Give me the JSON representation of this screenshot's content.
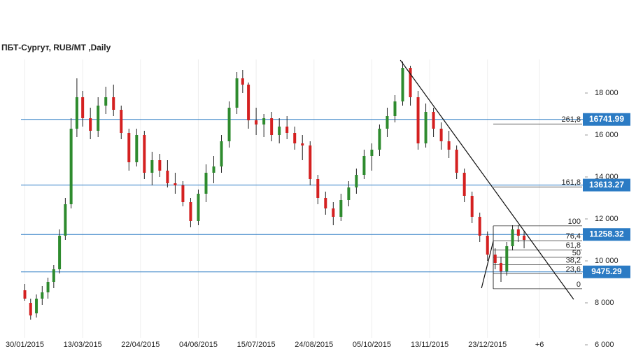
{
  "chart_data": {
    "type": "candlestick",
    "title": "ПБТ-Сургут,  RUB/MT ,Daily",
    "xlim": [
      -2,
      292
    ],
    "ylim": [
      6000,
      19600
    ],
    "xticks": [
      {
        "value": 0,
        "label": "30/01/2015"
      },
      {
        "value": 30,
        "label": "13/03/2015"
      },
      {
        "value": 60,
        "label": "22/04/2015"
      },
      {
        "value": 90,
        "label": "04/06/2015"
      },
      {
        "value": 120,
        "label": "15/07/2015"
      },
      {
        "value": 150,
        "label": "24/08/2015"
      },
      {
        "value": 180,
        "label": "05/10/2015"
      },
      {
        "value": 210,
        "label": "13/11/2015"
      },
      {
        "value": 240,
        "label": "23/12/2015"
      },
      {
        "value": 267,
        "label": "+6"
      }
    ],
    "yticks": [
      {
        "value": 6000,
        "label": "6 000"
      },
      {
        "value": 8000,
        "label": "8 000"
      },
      {
        "value": 10000,
        "label": "10 000"
      },
      {
        "value": 12000,
        "label": "12 000"
      },
      {
        "value": 14000,
        "label": "14 000"
      },
      {
        "value": 16000,
        "label": "16 000"
      },
      {
        "value": 18000,
        "label": "18 000"
      }
    ],
    "up_color": "#2e8b2e",
    "down_color": "#d42020",
    "x": [
      0,
      3,
      6,
      9,
      12,
      15,
      18,
      21,
      24,
      27,
      30,
      34,
      38,
      42,
      46,
      50,
      54,
      58,
      62,
      66,
      70,
      74,
      78,
      82,
      86,
      90,
      94,
      98,
      102,
      106,
      110,
      113,
      116,
      120,
      124,
      128,
      132,
      136,
      140,
      144,
      148,
      152,
      156,
      160,
      164,
      168,
      172,
      176,
      180,
      184,
      188,
      192,
      196,
      200,
      204,
      208,
      212,
      216,
      220,
      224,
      228,
      232,
      236,
      240,
      244,
      247,
      250,
      253,
      256,
      259
    ],
    "open": [
      8600,
      8000,
      7500,
      8200,
      8500,
      9000,
      9600,
      11200,
      12700,
      16300,
      17800,
      16800,
      16200,
      17400,
      17800,
      17200,
      16100,
      14700,
      16000,
      14200,
      14800,
      14300,
      13700,
      13600,
      12800,
      11900,
      13200,
      14200,
      14500,
      15700,
      17300,
      18700,
      18400,
      16700,
      16500,
      16800,
      16000,
      16400,
      16100,
      15600,
      15500,
      13900,
      13000,
      12500,
      12100,
      12900,
      13500,
      14100,
      15000,
      15300,
      16300,
      16900,
      17600,
      19200,
      17800,
      15600,
      17100,
      16300,
      15700,
      15300,
      14200,
      13100,
      12100,
      11200,
      10300,
      9900,
      9500,
      10700,
      11500,
      11200
    ],
    "high": [
      8900,
      8200,
      8400,
      8800,
      9200,
      9800,
      11500,
      13000,
      16800,
      18700,
      18100,
      17300,
      17800,
      18300,
      18400,
      17400,
      16300,
      16300,
      16200,
      15200,
      15100,
      14800,
      14200,
      13800,
      13000,
      13400,
      14600,
      15000,
      16000,
      17600,
      19000,
      19100,
      18500,
      17300,
      17000,
      17100,
      16800,
      16900,
      16400,
      16000,
      15700,
      14100,
      13300,
      12800,
      13200,
      13800,
      14400,
      15300,
      15600,
      16500,
      17300,
      17900,
      19500,
      19300,
      18100,
      17500,
      17300,
      16600,
      16200,
      15500,
      14400,
      13300,
      12300,
      11400,
      10600,
      10200,
      10900,
      11700,
      11700,
      11400
    ],
    "low": [
      8100,
      7200,
      7300,
      7900,
      8200,
      8700,
      9400,
      11000,
      12500,
      15900,
      16400,
      15800,
      15900,
      17000,
      16900,
      15800,
      14300,
      14500,
      13900,
      13600,
      14000,
      13500,
      13200,
      12600,
      11600,
      11700,
      12800,
      13700,
      14200,
      15400,
      17000,
      18000,
      16300,
      16000,
      15900,
      15700,
      15600,
      15800,
      15300,
      14800,
      13600,
      12700,
      12200,
      11700,
      11900,
      12600,
      13200,
      13900,
      14300,
      15000,
      15900,
      16600,
      17400,
      17400,
      15300,
      15400,
      15900,
      15300,
      14900,
      13900,
      12800,
      11800,
      10900,
      10000,
      9600,
      9000,
      9300,
      10500,
      10900,
      10600
    ],
    "close": [
      8200,
      7400,
      8200,
      8500,
      9000,
      9600,
      11200,
      12700,
      16300,
      17800,
      16800,
      16200,
      17400,
      17800,
      17200,
      16100,
      14700,
      16000,
      14200,
      14800,
      14300,
      13700,
      13600,
      12800,
      11900,
      13200,
      14200,
      14500,
      15700,
      17300,
      18700,
      18400,
      16700,
      16500,
      16800,
      16000,
      16400,
      16100,
      15600,
      15500,
      13900,
      13000,
      12500,
      12100,
      12900,
      13500,
      14100,
      15000,
      15300,
      16300,
      16900,
      17600,
      19200,
      17800,
      15600,
      17100,
      16300,
      15700,
      15300,
      14200,
      13100,
      12100,
      11200,
      10300,
      9900,
      9500,
      10700,
      11500,
      11200,
      11000
    ],
    "levels": [
      {
        "value": 16741.99,
        "label": "16741.99"
      },
      {
        "value": 13613.27,
        "label": "13613.27"
      },
      {
        "value": 11258.32,
        "label": "11258.32"
      },
      {
        "value": 9475.29,
        "label": "9475.29"
      }
    ],
    "level_color": "#2b7bc4",
    "fib_start": 243,
    "fib": [
      {
        "value": 16524,
        "label": "261,8"
      },
      {
        "value": 13524,
        "label": "161,8"
      },
      {
        "value": 11670,
        "label": "100"
      },
      {
        "value": 10962,
        "label": "76,4"
      },
      {
        "value": 10524,
        "label": "61,8"
      },
      {
        "value": 10170,
        "label": "50"
      },
      {
        "value": 9816,
        "label": "38,2"
      },
      {
        "value": 9378,
        "label": "23,6"
      },
      {
        "value": 8670,
        "label": "0"
      }
    ],
    "trendlines": [
      {
        "x": [
          194.8,
          284.7
        ],
        "y": [
          19567,
          8167
        ]
      },
      {
        "x": [
          236.9,
          243
        ],
        "y": [
          8700,
          10933
        ]
      }
    ]
  }
}
